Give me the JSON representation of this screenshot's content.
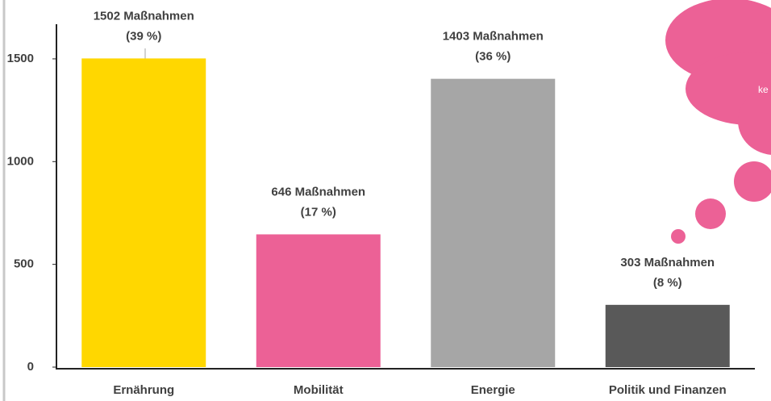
{
  "chart_data": {
    "type": "bar",
    "categories": [
      "Ernährung",
      "Mobilität",
      "Energie",
      "Politik und Finanzen"
    ],
    "values": [
      1502,
      646,
      1403,
      303
    ],
    "value_labels": [
      "1502 Maßnahmen",
      "646 Maßnahmen",
      "1403 Maßnahmen",
      "303 Maßnahmen"
    ],
    "share_labels": [
      "(39 %)",
      "(17 %)",
      "(36 %)",
      "(8 %)"
    ],
    "colors": [
      "#ffd700",
      "#ec6196",
      "#a6a6a6",
      "#595959"
    ],
    "ylim": [
      0,
      1700
    ],
    "yticks": [
      0,
      500,
      1000,
      1500
    ],
    "cloud_text": "ke"
  }
}
